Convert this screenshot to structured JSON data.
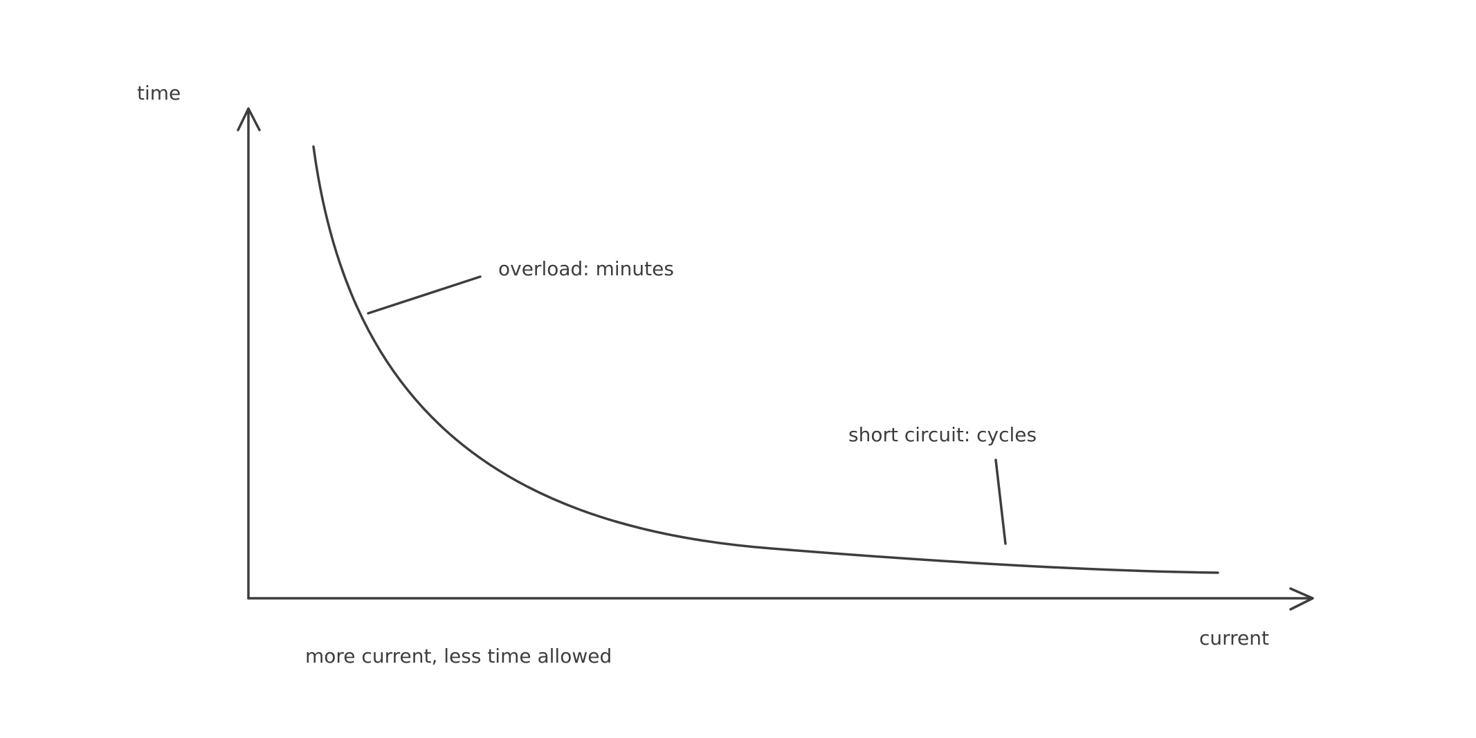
{
  "labels": {
    "y_axis": "time",
    "x_axis": "current",
    "overload": "overload: minutes",
    "short_circuit": "short circuit: cycles",
    "caption": "more current, less time allowed"
  }
}
